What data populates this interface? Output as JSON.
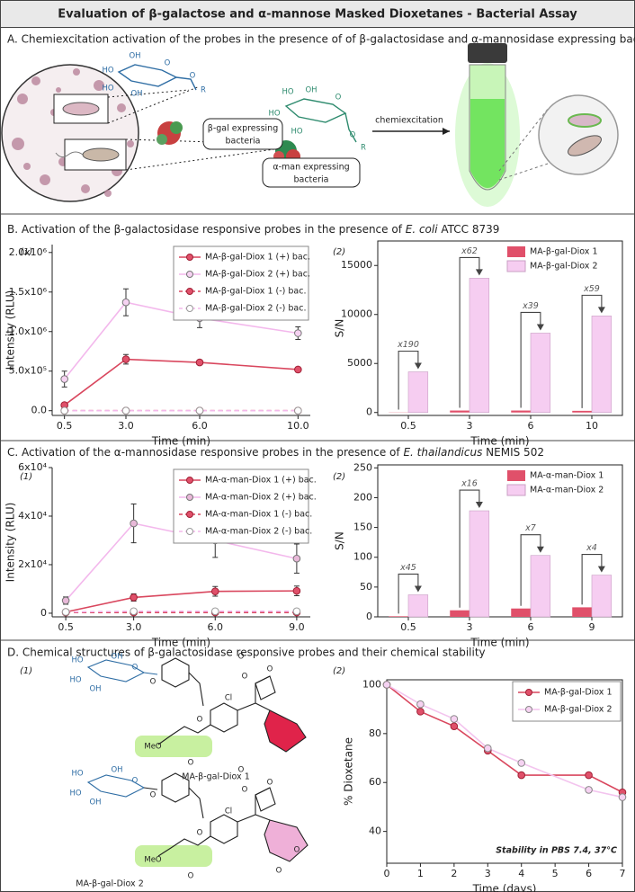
{
  "title": "Evaluation of β-galactose and α-mannose Masked Dioxetanes - Bacterial Assay",
  "panel_a": {
    "header": "A. Chemiexcitation activation of the probes in the presence of of β-galactosidase and α-mannosidase expressing bacteria",
    "bgal_label": [
      "β-gal expressing",
      "bacteria"
    ],
    "aman_label": [
      "α-man expressing",
      "bacteria"
    ],
    "arrow_label": "chemiexcitation",
    "gal_atoms": [
      "OH",
      "HO",
      "O",
      "HO",
      "OH",
      "O",
      "R"
    ],
    "man_atoms": [
      "HO",
      "OH",
      "HO",
      "HO",
      "O",
      "O",
      "R"
    ]
  },
  "panel_b": {
    "header": [
      "B. Activation of the β-galactosidase responsive probes in the presence of ",
      "E. coli",
      " ATCC 8739"
    ],
    "subpanels": [
      "(1)",
      "(2)"
    ]
  },
  "panel_c": {
    "header": [
      "C. Activation of the α-mannosidase responsive probes in the presence of ",
      "E. thailandicus",
      " NEMIS 502"
    ],
    "subpanels": [
      "(1)",
      "(2)"
    ]
  },
  "panel_d": {
    "header": "D. Chemical structures of β-galactosidase responsive probes and their chemical stability",
    "subpanels": [
      "(1)",
      "(2)"
    ],
    "compounds": [
      {
        "name": "MA-β-gal-Diox 1",
        "atoms": [
          "HO",
          "OH",
          "HO",
          "OH",
          "O",
          "O",
          "O",
          "Cl",
          "O",
          "O",
          "O",
          "MeO",
          "O"
        ]
      },
      {
        "name": "MA-β-gal-Diox 2",
        "atoms": [
          "HO",
          "OH",
          "HO",
          "OH",
          "O",
          "O",
          "O",
          "Cl",
          "O",
          "O",
          "O",
          "MeO",
          "O",
          "O",
          "O"
        ]
      }
    ]
  },
  "chart_data": [
    {
      "type": "line",
      "xlabel": "Time (min)",
      "ylabel": "Intensity (RLU)",
      "legend": "upper right",
      "xlim": [
        0,
        10.5
      ],
      "xticks": [
        0.5,
        {
          "value": 3,
          "label": "3.0"
        },
        {
          "value": 6,
          "label": "6.0"
        },
        {
          "value": 10,
          "label": "10.0"
        }
      ],
      "ylim": [
        -60000,
        2100000
      ],
      "yticks": [
        {
          "value": 0,
          "label": "0.0"
        },
        {
          "value": 500000,
          "label": "5.0x10⁵"
        },
        {
          "value": 1000000,
          "label": "1.0x10⁶"
        },
        {
          "value": 1500000,
          "label": "1.5x10⁶"
        },
        {
          "value": 2000000,
          "label": "2.0x10⁶"
        }
      ],
      "x": [
        0.5,
        3,
        6,
        10
      ],
      "series": [
        {
          "name": "MA-β-gal-Diox 1 (+) bac.",
          "color": "#d9475e",
          "marker_fill": "#e0506a",
          "marker_stroke": "#a02035",
          "dashed": false,
          "values": [
            70000,
            650000,
            610000,
            520000
          ],
          "errors": [
            25000,
            60000,
            20000,
            30000
          ]
        },
        {
          "name": "MA-β-gal-Diox 2 (+) bac.",
          "color": "#f3b8ec",
          "marker_fill": "#f6d2f2",
          "marker_stroke": "#777777",
          "dashed": false,
          "values": [
            400000,
            1370000,
            1170000,
            980000
          ],
          "errors": [
            100000,
            170000,
            120000,
            80000
          ]
        },
        {
          "name": "MA-β-gal-Diox 1 (-) bac.",
          "color": "#d9475e",
          "marker_fill": "#e0506a",
          "marker_stroke": "#a02035",
          "dashed": true,
          "values": [
            0,
            0,
            0,
            0
          ],
          "errors": [
            0,
            0,
            0,
            0
          ]
        },
        {
          "name": "MA-β-gal-Diox 2 (-) bac.",
          "color": "#f3b8ec",
          "marker_fill": "#ffffff",
          "marker_stroke": "#999999",
          "dashed": true,
          "values": [
            0,
            0,
            0,
            0
          ],
          "errors": [
            0,
            0,
            0,
            0
          ]
        }
      ]
    },
    {
      "type": "bar",
      "xlabel": "Time (min)",
      "ylabel": "S/N",
      "legend": "upper right",
      "categories": [
        "0.5",
        "3",
        "6",
        "10"
      ],
      "ylim": [
        -300,
        17500
      ],
      "yticks": [
        0,
        5000,
        10000,
        15000
      ],
      "series": [
        {
          "name": "MA-β-gal-Diox 1",
          "color": "#e0506a",
          "values": [
            20,
            200,
            200,
            170
          ]
        },
        {
          "name": "MA-β-gal-Diox 2",
          "color": "#f6cdf1",
          "values": [
            4150,
            13700,
            8100,
            9850
          ]
        }
      ],
      "annotations": [
        "x190",
        "x62",
        "x39",
        "x59"
      ]
    },
    {
      "type": "line",
      "xlabel": "Time (min)",
      "ylabel": "Intensity (RLU)",
      "legend": "upper right",
      "xlim": [
        0,
        9.5
      ],
      "xticks": [
        0.5,
        {
          "value": 3,
          "label": "3.0"
        },
        {
          "value": 6,
          "label": "6.0"
        },
        {
          "value": 9,
          "label": "9.0"
        }
      ],
      "ylim": [
        -1500,
        60000
      ],
      "yticks": [
        0,
        {
          "value": 20000,
          "label": "2x10⁴"
        },
        {
          "value": 40000,
          "label": "4x10⁴"
        },
        {
          "value": 60000,
          "label": "6x10⁴"
        }
      ],
      "x": [
        0.5,
        3,
        6,
        9
      ],
      "series": [
        {
          "name": "MA-α-man-Diox 1 (+) bac.",
          "color": "#d9475e",
          "marker_fill": "#e0506a",
          "marker_stroke": "#a02035",
          "dashed": false,
          "values": [
            500,
            6500,
            9000,
            9200
          ],
          "errors": [
            500,
            1500,
            2000,
            2000
          ]
        },
        {
          "name": "MA-α-man-Diox 2 (+) bac.",
          "color": "#f3b8ec",
          "marker_fill": "#e8b8d8",
          "marker_stroke": "#777777",
          "dashed": false,
          "values": [
            5200,
            37000,
            30000,
            22500
          ],
          "errors": [
            1500,
            8000,
            7000,
            6000
          ]
        },
        {
          "name": "MA-α-man-Diox 1 (-) bac.",
          "color": "#d9475e",
          "marker_fill": "#e0506a",
          "marker_stroke": "#a02035",
          "dashed": true,
          "values": [
            300,
            300,
            300,
            300
          ],
          "errors": [
            0,
            0,
            0,
            0
          ]
        },
        {
          "name": "MA-α-man-Diox 2 (-) bac.",
          "color": "#f3b8ec",
          "marker_fill": "#ffffff",
          "marker_stroke": "#999999",
          "dashed": true,
          "values": [
            500,
            800,
            800,
            800
          ],
          "errors": [
            0,
            0,
            0,
            0
          ]
        }
      ]
    },
    {
      "type": "bar",
      "xlabel": "Time (min)",
      "ylabel": "S/N",
      "legend": "upper right",
      "categories": [
        "0.5",
        "3",
        "6",
        "9"
      ],
      "ylim": [
        0,
        255
      ],
      "yticks": [
        0,
        50,
        100,
        150,
        200,
        250
      ],
      "series": [
        {
          "name": "MA-α-man-Diox 1",
          "color": "#e0506a",
          "values": [
            1,
            11,
            14,
            16
          ]
        },
        {
          "name": "MA-α-man-Diox 2",
          "color": "#f6cdf1",
          "values": [
            37,
            178,
            103,
            70
          ]
        }
      ],
      "annotations": [
        "x45",
        "x16",
        "x7",
        "x4"
      ]
    },
    {
      "type": "line",
      "xlabel": "Time (days)",
      "ylabel": "% Dioxetane",
      "legend": "upper right",
      "frame": true,
      "xlim": [
        0,
        7
      ],
      "xticks": [
        0,
        1,
        2,
        3,
        4,
        5,
        6,
        7
      ],
      "ylim": [
        27,
        102
      ],
      "yticks": [
        40,
        60,
        80,
        100
      ],
      "x": [
        0,
        1,
        2,
        3,
        4,
        6,
        7
      ],
      "annotation": "Stability in PBS 7.4, 37°C",
      "series": [
        {
          "name": "MA-β-gal-Diox 1",
          "color": "#d9475e",
          "marker_fill": "#e0506a",
          "marker_stroke": "#a02035",
          "dashed": false,
          "values": [
            100,
            89,
            83,
            73,
            63,
            63,
            56
          ]
        },
        {
          "name": "MA-β-gal-Diox 2",
          "color": "#f3c4ee",
          "marker_fill": "#f6d2f2",
          "marker_stroke": "#888888",
          "dashed": false,
          "values": [
            100,
            92,
            86,
            74,
            68,
            57,
            54
          ]
        }
      ]
    }
  ]
}
